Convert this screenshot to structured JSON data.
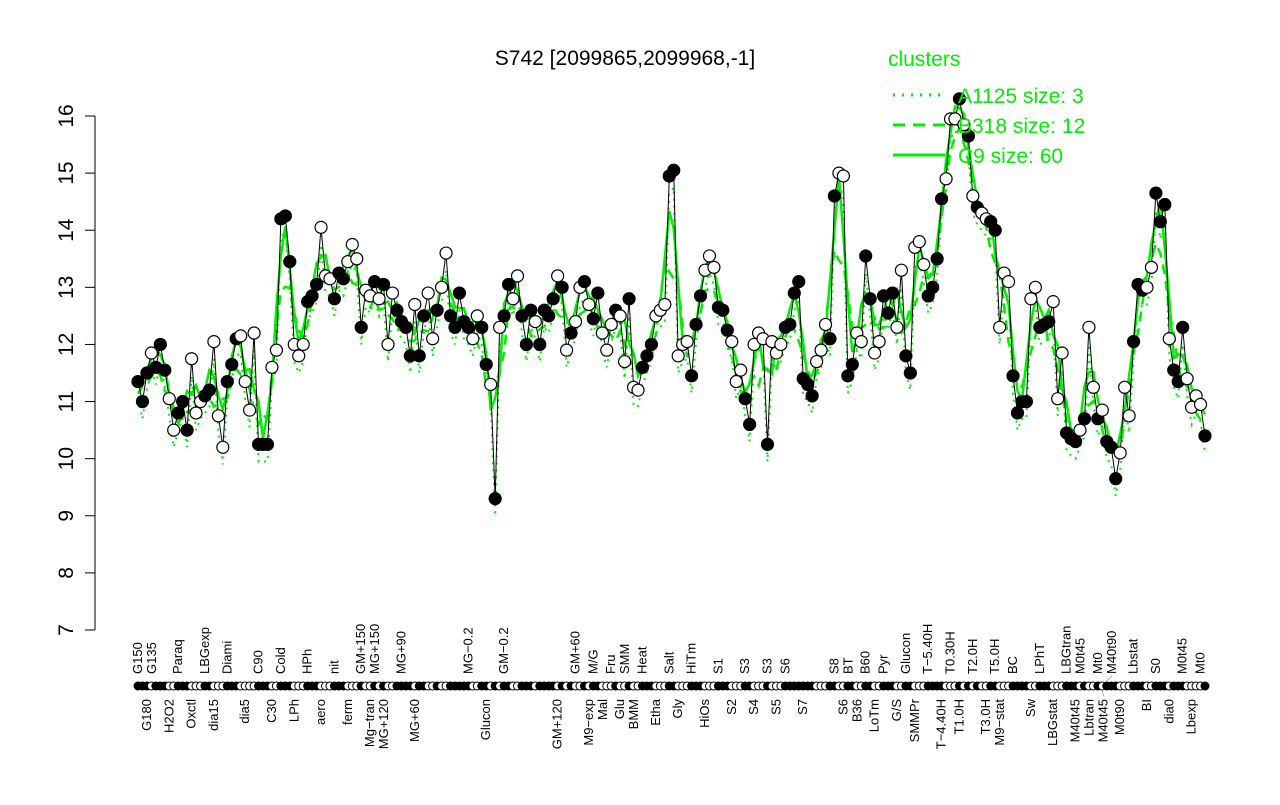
{
  "chart_data": {
    "type": "line",
    "title": "S742 [2099865,2099968,-1]",
    "xlabel": "",
    "ylabel": "",
    "ylim": [
      7,
      16
    ],
    "yticks": [
      7,
      8,
      9,
      10,
      11,
      12,
      13,
      14,
      15,
      16
    ],
    "legend": {
      "title": "clusters",
      "placement": "top-right",
      "entries": [
        "A1125 size: 3",
        "B318 size: 12",
        "C9 size: 60"
      ]
    },
    "series_color": "#00ee00",
    "points": [
      [
        "G150",
        11.35,
        1
      ],
      [
        "",
        11.0,
        1
      ],
      [
        "G180",
        11.5,
        1
      ],
      [
        "G135",
        11.85,
        0
      ],
      [
        "",
        11.6,
        1
      ],
      [
        "",
        12.0,
        1
      ],
      [
        "",
        11.55,
        1
      ],
      [
        "H2O2",
        11.05,
        0
      ],
      [
        "",
        10.5,
        0
      ],
      [
        "Paraq",
        10.8,
        1
      ],
      [
        "",
        11.0,
        1
      ],
      [
        "",
        10.5,
        1
      ],
      [
        "Oxctl",
        11.75,
        0
      ],
      [
        "",
        10.8,
        0
      ],
      [
        "",
        11.0,
        0
      ],
      [
        "LBGexp",
        11.1,
        1
      ],
      [
        "",
        11.2,
        1
      ],
      [
        "dia15",
        12.05,
        0
      ],
      [
        "",
        10.75,
        0
      ],
      [
        "",
        10.2,
        0
      ],
      [
        "Diami",
        11.35,
        1
      ],
      [
        "",
        11.65,
        1
      ],
      [
        "",
        12.1,
        1
      ],
      [
        "",
        12.15,
        0
      ],
      [
        "dia5",
        11.35,
        0
      ],
      [
        "",
        10.85,
        0
      ],
      [
        "",
        12.2,
        0
      ],
      [
        "C90",
        10.25,
        1
      ],
      [
        "",
        10.25,
        1
      ],
      [
        "",
        10.25,
        1
      ],
      [
        "C30",
        11.6,
        0
      ],
      [
        "",
        11.9,
        0
      ],
      [
        "Cold",
        14.2,
        1
      ],
      [
        "",
        14.25,
        1
      ],
      [
        "",
        13.45,
        1
      ],
      [
        "LPh",
        12.0,
        0
      ],
      [
        "",
        11.8,
        0
      ],
      [
        "",
        12.0,
        0
      ],
      [
        "HPh",
        12.75,
        1
      ],
      [
        "",
        12.85,
        1
      ],
      [
        "",
        13.05,
        1
      ],
      [
        "aero",
        14.05,
        0
      ],
      [
        "",
        13.2,
        0
      ],
      [
        "",
        13.15,
        0
      ],
      [
        "nit",
        12.8,
        1
      ],
      [
        "",
        13.25,
        1
      ],
      [
        "",
        13.15,
        1
      ],
      [
        "ferm",
        13.45,
        0
      ],
      [
        "",
        13.75,
        0
      ],
      [
        "",
        13.5,
        0
      ],
      [
        "GM+150",
        12.3,
        1
      ],
      [
        "",
        12.95,
        0
      ],
      [
        "Mg−tran",
        12.85,
        0
      ],
      [
        "MG+150",
        13.1,
        1
      ],
      [
        "",
        12.8,
        0
      ],
      [
        "MG+120",
        13.05,
        1
      ],
      [
        "",
        12.0,
        0
      ],
      [
        "",
        12.9,
        0
      ],
      [
        "",
        12.6,
        1
      ],
      [
        "MG+90",
        12.4,
        1
      ],
      [
        "",
        12.3,
        1
      ],
      [
        "",
        11.8,
        1
      ],
      [
        "MG+60",
        12.7,
        0
      ],
      [
        "",
        11.8,
        1
      ],
      [
        "",
        12.5,
        1
      ],
      [
        "",
        12.9,
        0
      ],
      [
        "",
        12.1,
        0
      ],
      [
        "",
        12.6,
        1
      ],
      [
        "",
        13.0,
        0
      ],
      [
        "",
        13.6,
        0
      ],
      [
        "",
        12.5,
        1
      ],
      [
        "",
        12.3,
        1
      ],
      [
        "",
        12.9,
        1
      ],
      [
        "",
        12.4,
        1
      ],
      [
        "MG−0.2",
        12.3,
        1
      ],
      [
        "",
        12.1,
        0
      ],
      [
        "",
        12.5,
        0
      ],
      [
        "",
        12.3,
        1
      ],
      [
        "Glucon",
        11.65,
        1
      ],
      [
        "",
        11.3,
        0
      ],
      [
        "",
        9.3,
        1
      ],
      [
        "",
        12.3,
        0
      ],
      [
        "GM−0.2",
        12.5,
        1
      ],
      [
        "",
        13.05,
        1
      ],
      [
        "",
        12.8,
        0
      ],
      [
        "",
        13.2,
        0
      ],
      [
        "",
        12.5,
        1
      ],
      [
        "",
        12.0,
        1
      ],
      [
        "",
        12.6,
        1
      ],
      [
        "",
        12.4,
        0
      ],
      [
        "",
        12.0,
        1
      ],
      [
        "",
        12.6,
        1
      ],
      [
        "",
        12.5,
        1
      ],
      [
        "",
        12.8,
        1
      ],
      [
        "GM+120",
        13.2,
        0
      ],
      [
        "",
        13.0,
        1
      ],
      [
        "",
        11.9,
        0
      ],
      [
        "",
        12.2,
        1
      ],
      [
        "GM+60",
        12.4,
        0
      ],
      [
        "",
        13.0,
        0
      ],
      [
        "",
        13.1,
        1
      ],
      [
        "M9−exp",
        12.7,
        0
      ],
      [
        "M/G",
        12.45,
        1
      ],
      [
        "",
        12.9,
        1
      ],
      [
        "Mal",
        12.2,
        0
      ],
      [
        "",
        11.9,
        0
      ],
      [
        "Fru",
        12.35,
        0
      ],
      [
        "",
        12.6,
        1
      ],
      [
        "Glu",
        12.5,
        0
      ],
      [
        "SMM",
        11.7,
        0
      ],
      [
        "",
        12.8,
        1
      ],
      [
        "BMM",
        11.25,
        0
      ],
      [
        "",
        11.2,
        0
      ],
      [
        "Heat",
        11.6,
        1
      ],
      [
        "",
        11.8,
        1
      ],
      [
        "",
        12.0,
        1
      ],
      [
        "Etha",
        12.5,
        0
      ],
      [
        "",
        12.6,
        0
      ],
      [
        "",
        12.7,
        0
      ],
      [
        "Salt",
        14.95,
        1
      ],
      [
        "",
        15.05,
        1
      ],
      [
        "Gly",
        11.8,
        0
      ],
      [
        "",
        12.0,
        0
      ],
      [
        "",
        12.05,
        0
      ],
      [
        "HiTm",
        11.45,
        1
      ],
      [
        "",
        12.35,
        1
      ],
      [
        "",
        12.85,
        1
      ],
      [
        "HiOs",
        13.3,
        0
      ],
      [
        "",
        13.55,
        0
      ],
      [
        "",
        13.35,
        0
      ],
      [
        "S1",
        12.65,
        1
      ],
      [
        "",
        12.6,
        1
      ],
      [
        "",
        12.25,
        1
      ],
      [
        "S2",
        12.05,
        0
      ],
      [
        "",
        11.35,
        0
      ],
      [
        "",
        11.55,
        0
      ],
      [
        "S3",
        11.05,
        1
      ],
      [
        "",
        10.6,
        1
      ],
      [
        "S4",
        12.0,
        0
      ],
      [
        "",
        12.2,
        0
      ],
      [
        "",
        12.1,
        0
      ],
      [
        "S3",
        10.25,
        1
      ],
      [
        "",
        12.05,
        0
      ],
      [
        "S5",
        11.85,
        0
      ],
      [
        "",
        12.0,
        0
      ],
      [
        "S6",
        12.3,
        1
      ],
      [
        "",
        12.35,
        1
      ],
      [
        "",
        12.9,
        1
      ],
      [
        "",
        13.1,
        1
      ],
      [
        "S7",
        11.4,
        1
      ],
      [
        "",
        11.3,
        1
      ],
      [
        "",
        11.1,
        1
      ],
      [
        "",
        11.7,
        0
      ],
      [
        "",
        11.9,
        0
      ],
      [
        "",
        12.35,
        0
      ],
      [
        "",
        12.1,
        1
      ],
      [
        "S8",
        14.6,
        1
      ],
      [
        "",
        15.0,
        0
      ],
      [
        "S6",
        14.95,
        0
      ],
      [
        "BT",
        11.45,
        1
      ],
      [
        "",
        11.65,
        1
      ],
      [
        "B36",
        12.2,
        0
      ],
      [
        "",
        12.05,
        0
      ],
      [
        "B60",
        13.55,
        1
      ],
      [
        "",
        12.8,
        1
      ],
      [
        "LoTm",
        11.85,
        0
      ],
      [
        "",
        12.05,
        0
      ],
      [
        "Pyr",
        12.85,
        1
      ],
      [
        "",
        12.55,
        1
      ],
      [
        "",
        12.9,
        1
      ],
      [
        "G/S",
        12.3,
        0
      ],
      [
        "",
        13.3,
        0
      ],
      [
        "Glucon",
        11.8,
        1
      ],
      [
        "",
        11.5,
        1
      ],
      [
        "SMMPr",
        13.7,
        0
      ],
      [
        "",
        13.8,
        0
      ],
      [
        "",
        13.4,
        0
      ],
      [
        "T−5.40H",
        12.85,
        1
      ],
      [
        "",
        13.0,
        1
      ],
      [
        "",
        13.5,
        1
      ],
      [
        "T−4.40H",
        14.55,
        1
      ],
      [
        "",
        14.9,
        0
      ],
      [
        "T0.30H",
        15.95,
        0
      ],
      [
        "",
        15.95,
        0
      ],
      [
        "T1.0H",
        16.3,
        1
      ],
      [
        "",
        15.85,
        0
      ],
      [
        "",
        15.65,
        1
      ],
      [
        "T2.0H",
        14.6,
        0
      ],
      [
        "",
        14.4,
        1
      ],
      [
        "",
        14.3,
        0
      ],
      [
        "T3.0H",
        14.2,
        0
      ],
      [
        "",
        14.15,
        1
      ],
      [
        "T5.0H",
        14.0,
        1
      ],
      [
        "M9−stat",
        12.3,
        0
      ],
      [
        "",
        13.25,
        0
      ],
      [
        "",
        13.1,
        0
      ],
      [
        "BC",
        11.45,
        1
      ],
      [
        "",
        10.8,
        1
      ],
      [
        "",
        11.0,
        1
      ],
      [
        "",
        11.0,
        1
      ],
      [
        "Sw",
        12.8,
        0
      ],
      [
        "",
        13.0,
        0
      ],
      [
        "LPhT",
        12.3,
        1
      ],
      [
        "",
        12.35,
        1
      ],
      [
        "",
        12.4,
        1
      ],
      [
        "LBGstat",
        12.75,
        0
      ],
      [
        "",
        11.05,
        0
      ],
      [
        "",
        11.85,
        0
      ],
      [
        "LBGtran",
        10.45,
        1
      ],
      [
        "",
        10.35,
        1
      ],
      [
        "M40t45",
        10.3,
        1
      ],
      [
        "M0t45",
        10.5,
        0
      ],
      [
        "",
        10.7,
        1
      ],
      [
        "Lbtran",
        12.3,
        0
      ],
      [
        "",
        11.25,
        0
      ],
      [
        "Mt0",
        10.7,
        1
      ],
      [
        "M40t45",
        10.85,
        0
      ],
      [
        "M40t90",
        10.3,
        1
      ],
      [
        "",
        10.2,
        1
      ],
      [
        "",
        9.65,
        1
      ],
      [
        "M0t90",
        10.1,
        0
      ],
      [
        "",
        11.25,
        0
      ],
      [
        "",
        10.75,
        0
      ],
      [
        "Lbstat",
        12.05,
        1
      ],
      [
        "",
        13.05,
        1
      ],
      [
        "",
        12.95,
        1
      ],
      [
        "BI",
        13.0,
        0
      ],
      [
        "",
        13.35,
        0
      ],
      [
        "S0",
        14.65,
        1
      ],
      [
        "",
        14.15,
        1
      ],
      [
        "",
        14.45,
        1
      ],
      [
        "dia0",
        12.1,
        0
      ],
      [
        "",
        11.55,
        1
      ],
      [
        "",
        11.35,
        1
      ],
      [
        "M0t45",
        12.3,
        1
      ],
      [
        "",
        11.4,
        0
      ],
      [
        "Lbexp",
        10.9,
        0
      ],
      [
        "",
        11.1,
        0
      ],
      [
        "Mt0",
        10.95,
        0
      ],
      [
        "",
        10.4,
        1
      ]
    ]
  }
}
